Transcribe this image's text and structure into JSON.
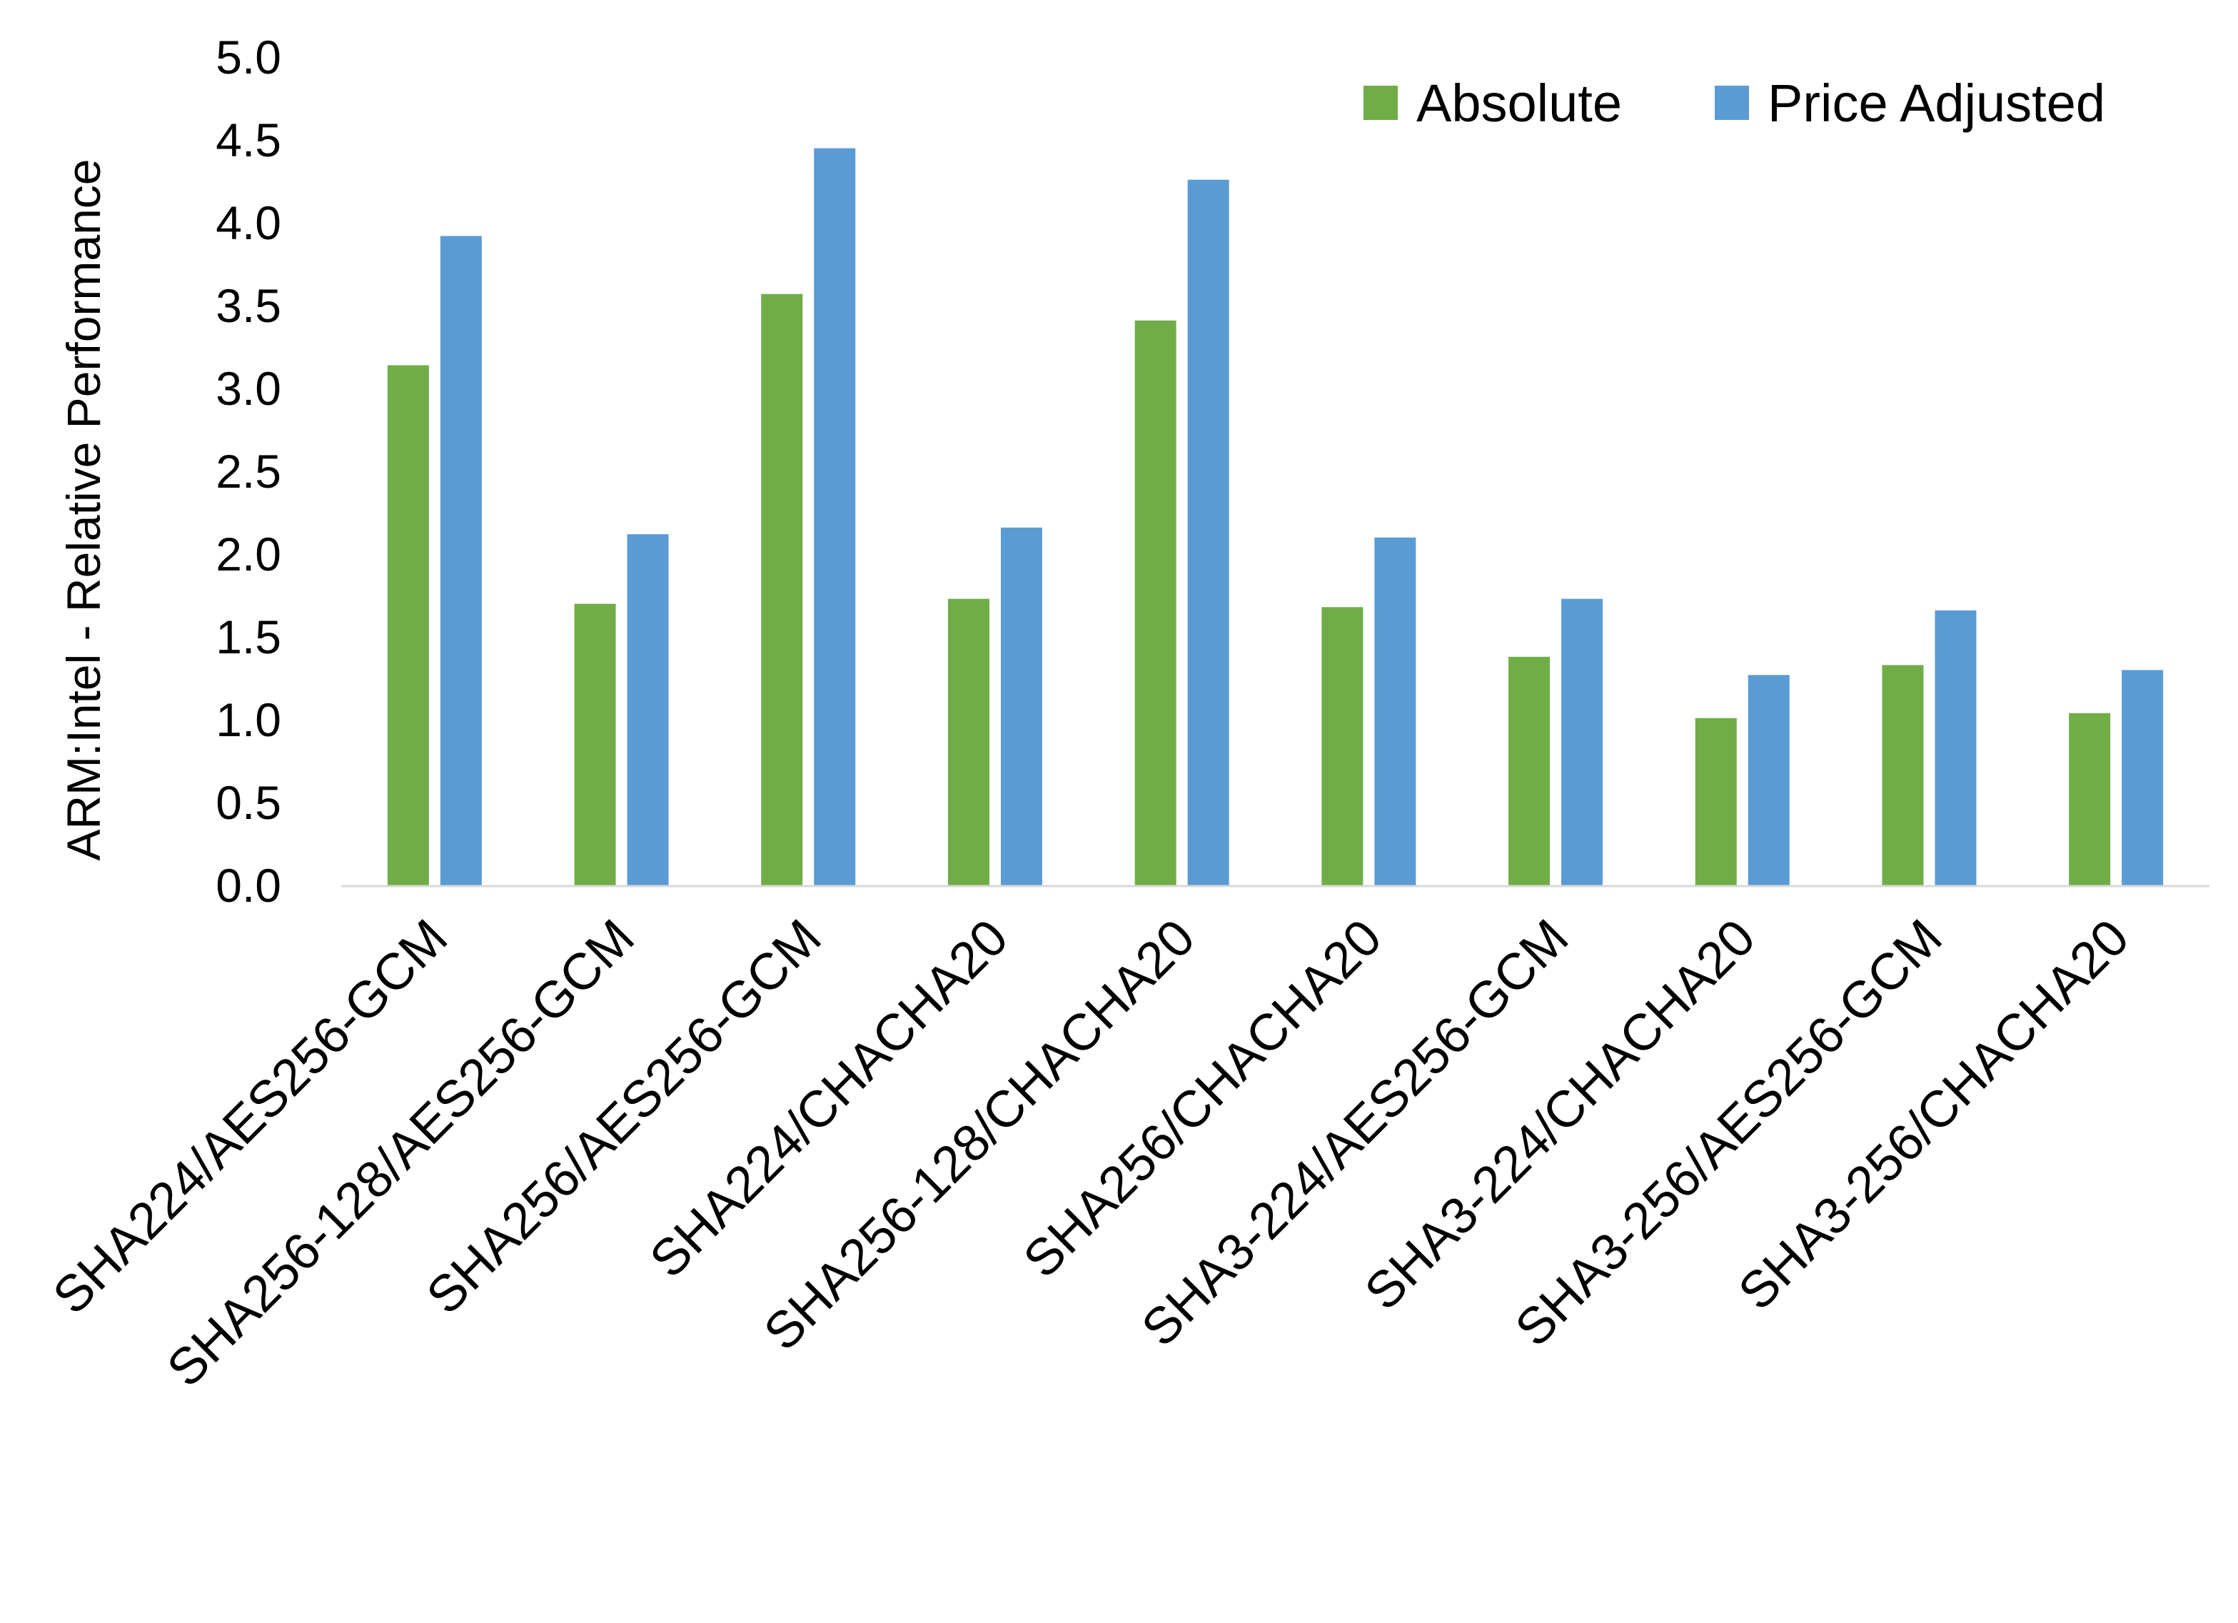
{
  "chart_data": {
    "type": "bar",
    "title": "",
    "xlabel": "",
    "ylabel": "ARM:Intel - Relative Performance",
    "ylim": [
      0,
      5
    ],
    "ytick_step": 0.5,
    "yticks": [
      "0.0",
      "0.5",
      "1.0",
      "1.5",
      "2.0",
      "2.5",
      "3.0",
      "3.5",
      "4.0",
      "4.5",
      "5.0"
    ],
    "grid": false,
    "legend_position": "top-right",
    "categories": [
      "SHA224/AES256-GCM",
      "SHA256-128/AES256-GCM",
      "SHA256/AES256-GCM",
      "SHA224/CHACHA20",
      "SHA256-128/CHACHA20",
      "SHA256/CHACHA20",
      "SHA3-224/AES256-GCM",
      "SHA3-224/CHACHA20",
      "SHA3-256/AES256-GCM",
      "SHA3-256/CHACHA20"
    ],
    "series": [
      {
        "name": "Absolute",
        "color": "#70AD47",
        "values": [
          3.14,
          1.7,
          3.57,
          1.73,
          3.41,
          1.68,
          1.38,
          1.01,
          1.33,
          1.04
        ]
      },
      {
        "name": "Price Adjusted",
        "color": "#5B9BD5",
        "values": [
          3.92,
          2.12,
          4.45,
          2.16,
          4.26,
          2.1,
          1.73,
          1.27,
          1.66,
          1.3
        ]
      }
    ],
    "axis_color": "#D9D9D9"
  }
}
